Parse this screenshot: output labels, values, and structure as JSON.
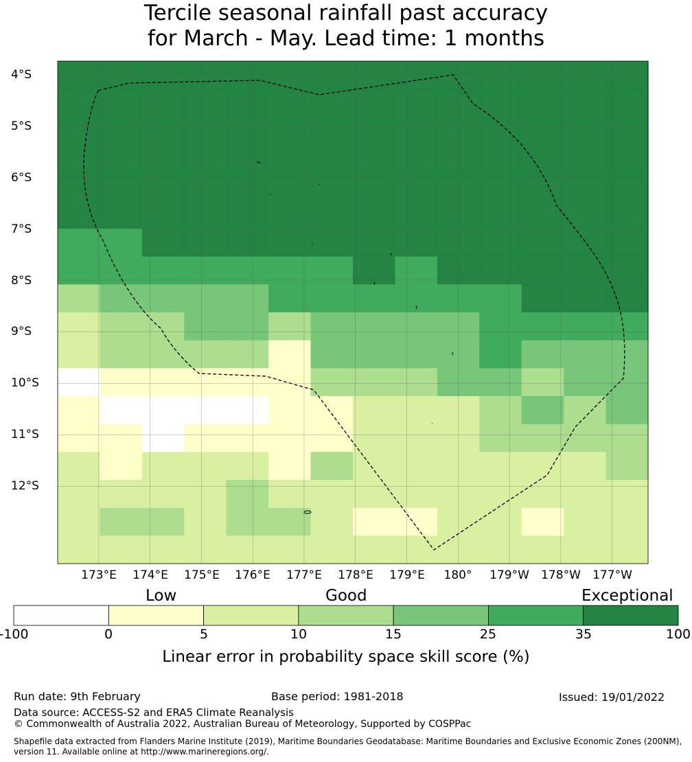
{
  "title_line1": "Tercile seasonal rainfall past accuracy",
  "title_line2": "for March - May. Lead time: 1 months",
  "map": {
    "lat_labels": [
      "4°S",
      "5°S",
      "6°S",
      "7°S",
      "8°S",
      "9°S",
      "10°S",
      "11°S",
      "12°S"
    ],
    "lat_values": [
      -4,
      -5,
      -6,
      -7,
      -8,
      -9,
      -10,
      -11,
      -12
    ],
    "lon_labels": [
      "173°E",
      "174°E",
      "175°E",
      "176°E",
      "177°E",
      "178°E",
      "179°E",
      "180°",
      "179°W",
      "178°W",
      "177°W"
    ],
    "lon_values": [
      173,
      174,
      175,
      176,
      177,
      178,
      179,
      180,
      181,
      182,
      183
    ],
    "lon_range": [
      172.2,
      183.7
    ],
    "lat_range": [
      -13.5,
      -3.75
    ],
    "grid_cols": 14,
    "grid_rows": 18,
    "cell_classes": [
      [
        6,
        6,
        6,
        6,
        6,
        6,
        6,
        6,
        6,
        6,
        6,
        6,
        6,
        6
      ],
      [
        6,
        6,
        6,
        6,
        6,
        6,
        6,
        6,
        6,
        6,
        6,
        6,
        6,
        6
      ],
      [
        6,
        6,
        6,
        6,
        6,
        6,
        6,
        6,
        6,
        6,
        6,
        6,
        6,
        6
      ],
      [
        6,
        6,
        6,
        6,
        6,
        6,
        6,
        6,
        6,
        6,
        6,
        6,
        6,
        6
      ],
      [
        6,
        6,
        6,
        6,
        6,
        6,
        6,
        6,
        6,
        6,
        6,
        6,
        6,
        6
      ],
      [
        6,
        6,
        6,
        6,
        6,
        6,
        6,
        6,
        6,
        6,
        6,
        6,
        6,
        6
      ],
      [
        5,
        5,
        6,
        6,
        6,
        6,
        6,
        6,
        6,
        6,
        6,
        6,
        6,
        6
      ],
      [
        5,
        5,
        5,
        5,
        5,
        5,
        5,
        6,
        5,
        6,
        6,
        6,
        6,
        6
      ],
      [
        3,
        4,
        4,
        4,
        4,
        5,
        5,
        5,
        5,
        5,
        5,
        6,
        6,
        6
      ],
      [
        2,
        3,
        3,
        4,
        4,
        3,
        4,
        4,
        4,
        4,
        5,
        5,
        5,
        5
      ],
      [
        2,
        3,
        3,
        3,
        3,
        1,
        4,
        4,
        4,
        4,
        5,
        4,
        4,
        4
      ],
      [
        0,
        1,
        1,
        1,
        1,
        1,
        3,
        3,
        3,
        4,
        4,
        3,
        4,
        4
      ],
      [
        1,
        0,
        0,
        0,
        0,
        1,
        1,
        2,
        2,
        2,
        3,
        4,
        3,
        4
      ],
      [
        1,
        1,
        0,
        1,
        1,
        1,
        1,
        2,
        2,
        2,
        3,
        3,
        3,
        3
      ],
      [
        2,
        1,
        2,
        2,
        2,
        1,
        3,
        2,
        2,
        2,
        2,
        2,
        2,
        3
      ],
      [
        2,
        2,
        2,
        2,
        3,
        2,
        2,
        2,
        2,
        2,
        2,
        2,
        2,
        2
      ],
      [
        2,
        3,
        3,
        2,
        3,
        3,
        2,
        1,
        1,
        2,
        2,
        1,
        2,
        2
      ],
      [
        2,
        2,
        2,
        2,
        2,
        2,
        2,
        2,
        2,
        2,
        2,
        2,
        2,
        2
      ]
    ]
  },
  "legend": {
    "categories": [
      "Low",
      "Good",
      "Exceptional"
    ],
    "ticks": [
      "-100",
      "0",
      "5",
      "10",
      "15",
      "25",
      "35",
      "100"
    ],
    "colors": [
      "#ffffff",
      "#ffffcc",
      "#d9f0a3",
      "#addd8e",
      "#78c679",
      "#41ab5d",
      "#238443"
    ],
    "title": "Linear error in probability space skill score (%)"
  },
  "footer": {
    "run_date": "Run date: 9th February",
    "base_period": "Base period: 1981-2018",
    "issued": "Issued: 19/01/2022",
    "data_source": "Data source: ACCESS-S2 and ERA5 Climate Reanalysis",
    "copyright": "© Commonwealth of Australia 2022, Australian Bureau of Meteorology, Supported by COSPPac",
    "shapefile_line1": "Shapefile data extracted from Flanders Marine Institute (2019), Maritime Boundaries Geodatabase: Maritime Boundaries and Exclusive Economic Zones (200NM),",
    "shapefile_line2": "version 11. Available online at http://www.marineregions.org/."
  }
}
